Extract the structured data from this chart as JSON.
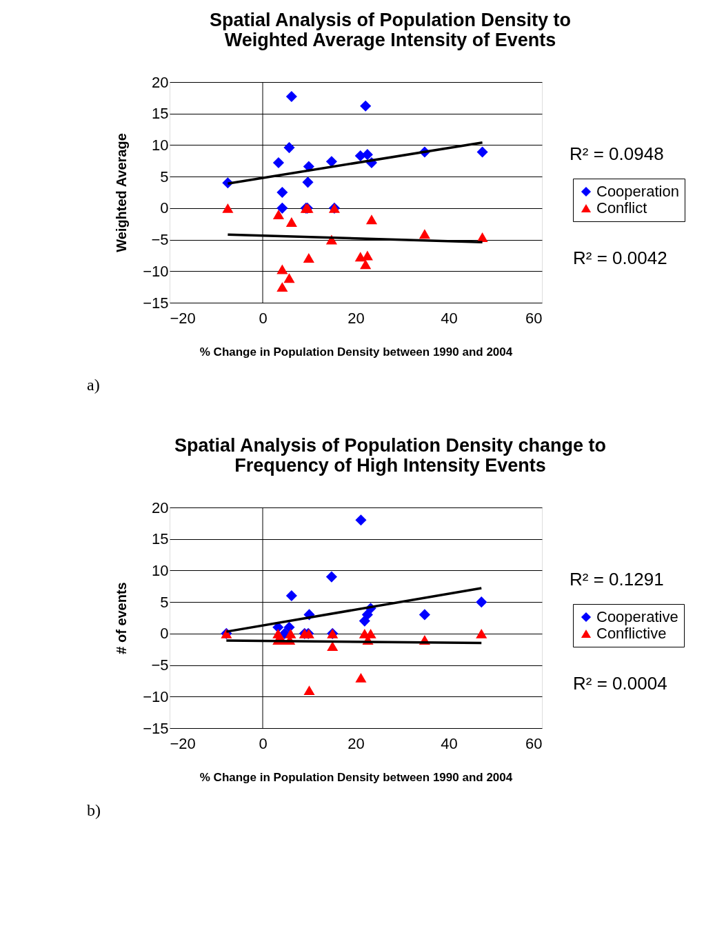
{
  "chart_data": [
    {
      "type": "scatter",
      "title": "Spatial Analysis of Population Density to\nWeighted Average Intensity of Events",
      "xlabel": "% Change in Population Density between 1990 and 2004",
      "ylabel": "Weighted Average",
      "xlim": [
        -20,
        60
      ],
      "xticks": [
        -20,
        0,
        20,
        40,
        60
      ],
      "ylim": [
        -15,
        20
      ],
      "yticks": [
        -15,
        -10,
        -5,
        0,
        5,
        10,
        15,
        20
      ],
      "grid": "y",
      "legend": "right",
      "ref_lines": [
        {
          "axis": "x",
          "value": 0,
          "color": "#000000"
        }
      ],
      "annotations": [
        "R² = 0.0948",
        "R² = 0.0042",
        "a)"
      ],
      "series": [
        {
          "name": "Cooperation",
          "marker": "diamond",
          "color": "#0000ff",
          "x": [
            -7.5,
            3.4,
            4.2,
            4.2,
            5.7,
            6.2,
            9.7,
            9.9,
            9.3,
            9.6,
            14.8,
            15.4,
            21,
            22.1,
            22.5,
            23.4,
            34.8,
            47.2
          ],
          "values": [
            4,
            7.2,
            2.5,
            0,
            9.6,
            17.7,
            4.1,
            6.6,
            0,
            0,
            7.4,
            0,
            8.3,
            16.2,
            8.5,
            7.2,
            8.9,
            8.9
          ]
        },
        {
          "name": "Conflict",
          "marker": "triangle",
          "color": "#ff0000",
          "x": [
            -7.5,
            3.4,
            4.2,
            4.2,
            5.7,
            6.2,
            9.3,
            9.7,
            9.9,
            14.8,
            15.4,
            21,
            22.1,
            22.5,
            23.4,
            34.8,
            47.2
          ],
          "values": [
            0,
            -1,
            -9.7,
            -12.5,
            -11.1,
            -2.2,
            0,
            0,
            -7.9,
            -5,
            0,
            -7.7,
            -8.9,
            -7.5,
            -1.8,
            -4.1,
            -4.6
          ]
        },
        {
          "type": "line",
          "color": "#000000",
          "x": [
            -7.5,
            47.2
          ],
          "values": [
            3.9,
            10.4
          ]
        },
        {
          "type": "line",
          "color": "#000000",
          "x": [
            -7.5,
            47.2
          ],
          "values": [
            -4.2,
            -5.4
          ]
        }
      ]
    },
    {
      "type": "scatter",
      "title": "Spatial Analysis of Population Density change to\nFrequency of High Intensity Events",
      "xlabel": "% Change in Population Density between 1990 and 2004",
      "ylabel": "# of events",
      "xlim": [
        -20,
        60
      ],
      "xticks": [
        -20,
        0,
        20,
        40,
        60
      ],
      "ylim": [
        -15,
        20
      ],
      "yticks": [
        -15,
        -10,
        -5,
        0,
        5,
        10,
        15,
        20
      ],
      "grid": "y",
      "legend": "right",
      "ref_lines": [
        {
          "axis": "x",
          "value": 0,
          "color": "#000000"
        }
      ],
      "annotations": [
        "R² = 0.1291",
        "R² = 0.0004",
        "b)"
      ],
      "series": [
        {
          "name": "Cooperative",
          "marker": "diamond",
          "color": "#0000ff",
          "x": [
            -7.8,
            3.3,
            4.7,
            5.7,
            6.2,
            10,
            9,
            9.8,
            14.8,
            15,
            21.1,
            21.9,
            22.5,
            23.2,
            34.8,
            47
          ],
          "values": [
            0,
            1,
            0,
            1,
            6,
            3,
            0,
            0,
            9,
            0,
            18,
            2,
            3,
            4,
            3,
            5
          ]
        },
        {
          "name": "Conflictive",
          "marker": "triangle",
          "color": "#ff0000",
          "x": [
            -7.8,
            3.3,
            3.3,
            4.1,
            5.8,
            6,
            9,
            9.9,
            10,
            15,
            15,
            21.1,
            21.9,
            22.6,
            23.2,
            34.8,
            47
          ],
          "values": [
            0,
            0,
            -1,
            -1,
            -1,
            0,
            0,
            0,
            -9,
            0,
            -2,
            -7,
            0,
            -1,
            0,
            -1,
            0
          ]
        },
        {
          "type": "line",
          "color": "#000000",
          "x": [
            -7.8,
            47
          ],
          "values": [
            0.3,
            7.2
          ]
        },
        {
          "type": "line",
          "color": "#000000",
          "x": [
            -7.8,
            47
          ],
          "values": [
            -1.1,
            -1.5
          ]
        }
      ]
    }
  ]
}
